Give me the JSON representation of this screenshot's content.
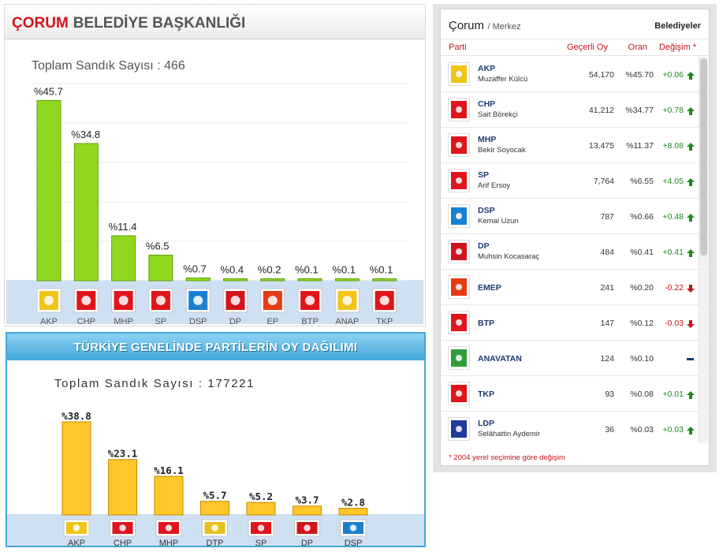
{
  "corum_chart": {
    "title_red": "ÇORUM",
    "title_rest": "BELEDİYE BAŞKANLIĞI",
    "total_label": "Toplam Sandık Sayısı : 466"
  },
  "turkiye_chart": {
    "title": "TÜRKİYE GENELİNDE PARTİLERİN OY DAĞILIMI",
    "total_label": "Toplam Sandık Sayısı : 177221"
  },
  "chart_data": [
    {
      "type": "bar",
      "title": "ÇORUM BELEDİYE BAŞKANLIĞI",
      "categories": [
        "AKP",
        "CHP",
        "MHP",
        "SP",
        "DSP",
        "DP",
        "EP",
        "BTP",
        "ANAP",
        "TKP"
      ],
      "values": [
        45.7,
        34.8,
        11.4,
        6.5,
        0.7,
        0.4,
        0.2,
        0.1,
        0.1,
        0.1
      ],
      "value_labels": [
        "%45.7",
        "%34.8",
        "%11.4",
        "%6.5",
        "%0.7",
        "%0.4",
        "%0.2",
        "%0.1",
        "%0.1",
        "%0.1"
      ],
      "ylim": [
        0,
        50
      ],
      "grid": true,
      "bar_color": "#8fd81f"
    },
    {
      "type": "bar",
      "title": "TÜRKİYE GENELİNDE PARTİLERİN OY DAĞILIMI",
      "categories": [
        "AKP",
        "CHP",
        "MHP",
        "DTP",
        "SP",
        "DP",
        "DSP"
      ],
      "values": [
        38.8,
        23.1,
        16.1,
        5.7,
        5.2,
        3.7,
        2.8
      ],
      "value_labels": [
        "%38.8",
        "%23.1",
        "%16.1",
        "%5.7",
        "%5.2",
        "%3.7",
        "%2.8"
      ],
      "ylim": [
        0,
        40
      ],
      "grid": false,
      "bar_color": "#ffc72c"
    }
  ],
  "results": {
    "city": "Çorum",
    "district": "/ Merkez",
    "tab": "Belediyeler",
    "columns": [
      "Parti",
      "Geçerli Oy",
      "Oran",
      "Değişim *"
    ],
    "rows": [
      {
        "party": "AKP",
        "candidate": "Muzaffer Külcü",
        "votes": "54,170",
        "ratio": "%45.70",
        "change": "+0.06",
        "trend": "up",
        "logo_color": "#f0c419"
      },
      {
        "party": "CHP",
        "candidate": "Sait Börekçi",
        "votes": "41,212",
        "ratio": "%34.77",
        "change": "+0.78",
        "trend": "up",
        "logo_color": "#e1141c"
      },
      {
        "party": "MHP",
        "candidate": "Bekir Soyocak",
        "votes": "13,475",
        "ratio": "%11.37",
        "change": "+8.08",
        "trend": "up",
        "logo_color": "#e1141c"
      },
      {
        "party": "SP",
        "candidate": "Arif Ersoy",
        "votes": "7,764",
        "ratio": "%6.55",
        "change": "+4.05",
        "trend": "up",
        "logo_color": "#e1141c"
      },
      {
        "party": "DSP",
        "candidate": "Kemal Uzun",
        "votes": "787",
        "ratio": "%0.66",
        "change": "+0.48",
        "trend": "up",
        "logo_color": "#1b7fd0"
      },
      {
        "party": "DP",
        "candidate": "Muhsin Kocasaraç",
        "votes": "484",
        "ratio": "%0.41",
        "change": "+0.41",
        "trend": "up",
        "logo_color": "#d3131c"
      },
      {
        "party": "EMEP",
        "candidate": "",
        "votes": "241",
        "ratio": "%0.20",
        "change": "-0.22",
        "trend": "down",
        "logo_color": "#e83a14"
      },
      {
        "party": "BTP",
        "candidate": "",
        "votes": "147",
        "ratio": "%0.12",
        "change": "-0.03",
        "trend": "down",
        "logo_color": "#e1141c"
      },
      {
        "party": "ANAVATAN",
        "candidate": "",
        "votes": "124",
        "ratio": "%0.10",
        "change": "",
        "trend": "none",
        "logo_color": "#2f9e3a"
      },
      {
        "party": "TKP",
        "candidate": "",
        "votes": "93",
        "ratio": "%0.08",
        "change": "+0.01",
        "trend": "up",
        "logo_color": "#e1141c"
      },
      {
        "party": "LDP",
        "candidate": "Selâhattin Aydemir",
        "votes": "36",
        "ratio": "%0.03",
        "change": "+0.03",
        "trend": "up",
        "logo_color": "#1c3b9a"
      }
    ],
    "footnote": "* 2004 yerel seçimine göre değişim"
  },
  "party_colors": {
    "AKP": "#f0c419",
    "CHP": "#e1141c",
    "MHP": "#e1141c",
    "SP": "#e1141c",
    "DSP": "#1b7fd0",
    "DP": "#d3131c",
    "EP": "#e83a14",
    "BTP": "#e1141c",
    "ANAP": "#f0c419",
    "TKP": "#e1141c",
    "DTP": "#e8c11d"
  }
}
